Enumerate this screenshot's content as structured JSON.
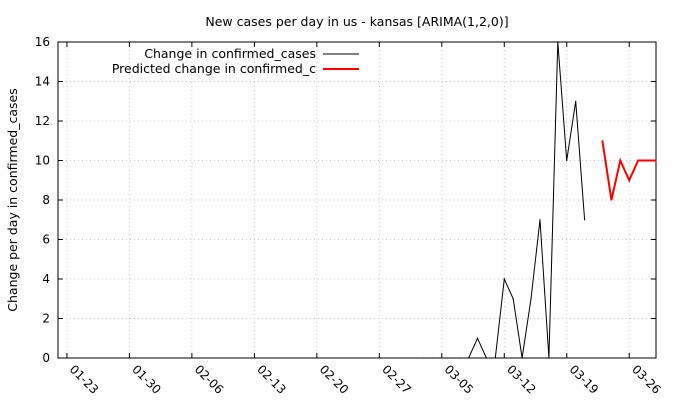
{
  "chart_data": {
    "type": "line",
    "title": "New cases per day in us - kansas [ARIMA(1,2,0)]",
    "xlabel": "",
    "ylabel": "Change per day in confirmed_cases",
    "x_ticks": [
      "01-23",
      "01-30",
      "02-06",
      "02-13",
      "02-20",
      "02-27",
      "03-05",
      "03-12",
      "03-19",
      "03-26"
    ],
    "xlim": [
      "2020-01-22",
      "2020-03-29"
    ],
    "ylim": [
      0,
      16
    ],
    "y_ticks": [
      0,
      2,
      4,
      6,
      8,
      10,
      12,
      14,
      16
    ],
    "grid": true,
    "legend_position": "top-right",
    "series": [
      {
        "name": "Change in confirmed_cases",
        "color": "#000000",
        "x": [
          "2020-03-03",
          "2020-03-04",
          "2020-03-05",
          "2020-03-06",
          "2020-03-07",
          "2020-03-08",
          "2020-03-09",
          "2020-03-10",
          "2020-03-11",
          "2020-03-12",
          "2020-03-13",
          "2020-03-14",
          "2020-03-15",
          "2020-03-16",
          "2020-03-17",
          "2020-03-18",
          "2020-03-19",
          "2020-03-20",
          "2020-03-21"
        ],
        "values": [
          0,
          0,
          0,
          0,
          0,
          0,
          1,
          0,
          0,
          4,
          3,
          0,
          3,
          7,
          0,
          16,
          10,
          13,
          7
        ]
      },
      {
        "name": "Predicted change in confirmed_c",
        "color": "#ff0000",
        "x": [
          "2020-03-23",
          "2020-03-24",
          "2020-03-25",
          "2020-03-26",
          "2020-03-27",
          "2020-03-28",
          "2020-03-29"
        ],
        "values": [
          11,
          8,
          10,
          9,
          10,
          10,
          10
        ]
      }
    ]
  }
}
